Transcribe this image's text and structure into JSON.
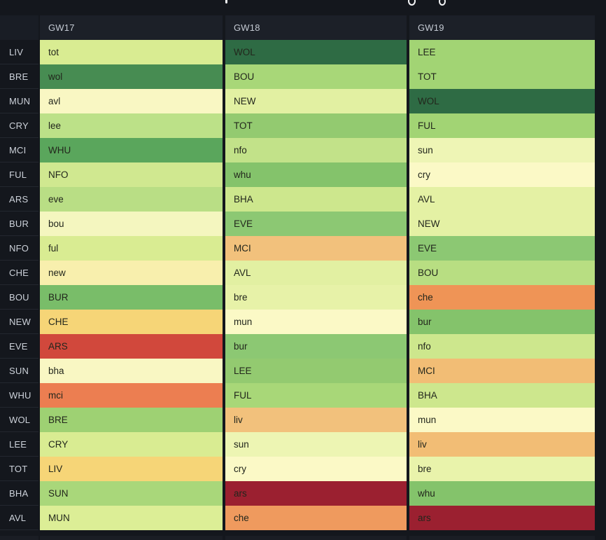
{
  "page": {
    "background": "#14171d",
    "note_cropped_title": "title text cut off at top edge; only letter descenders visible"
  },
  "theme": {
    "header_bg": "#1c2028",
    "header_text": "#c4cad3",
    "team_label_text": "#ccd1d9",
    "cell_text": "#22261c",
    "row_divider": "#23272f",
    "partial_row_bg": "#1a1d24",
    "scale_best_green": "#2e6b44",
    "scale_worst_red": "#9b2030"
  },
  "table": {
    "headers": [
      {
        "label": "GW17"
      },
      {
        "label": "GW18"
      },
      {
        "label": "GW19"
      }
    ],
    "rows": [
      {
        "team": "LIV",
        "fixtures": [
          {
            "opponent": "tot",
            "color": "#d9ec92"
          },
          {
            "opponent": "WOL",
            "color": "#2e6b44"
          },
          {
            "opponent": "LEE",
            "color": "#a2d474"
          }
        ]
      },
      {
        "team": "BRE",
        "fixtures": [
          {
            "opponent": "wol",
            "color": "#478c52"
          },
          {
            "opponent": "BOU",
            "color": "#a8d778"
          },
          {
            "opponent": "TOT",
            "color": "#a2d474"
          }
        ]
      },
      {
        "team": "MUN",
        "fixtures": [
          {
            "opponent": "avl",
            "color": "#f9f7c3"
          },
          {
            "opponent": "NEW",
            "color": "#e2f0a2"
          },
          {
            "opponent": "WOL",
            "color": "#2e6b44"
          }
        ]
      },
      {
        "team": "CRY",
        "fixtures": [
          {
            "opponent": "lee",
            "color": "#bce188"
          },
          {
            "opponent": "TOT",
            "color": "#93ca70"
          },
          {
            "opponent": "FUL",
            "color": "#a2d474"
          }
        ]
      },
      {
        "team": "MCI",
        "fixtures": [
          {
            "opponent": "WHU",
            "color": "#5aa65c"
          },
          {
            "opponent": "nfo",
            "color": "#c2e289"
          },
          {
            "opponent": "sun",
            "color": "#eef5b5"
          }
        ]
      },
      {
        "team": "FUL",
        "fixtures": [
          {
            "opponent": "NFO",
            "color": "#d0e890"
          },
          {
            "opponent": "whu",
            "color": "#84c36b"
          },
          {
            "opponent": "cry",
            "color": "#fbf9c6"
          }
        ]
      },
      {
        "team": "ARS",
        "fixtures": [
          {
            "opponent": "eve",
            "color": "#b9de85"
          },
          {
            "opponent": "BHA",
            "color": "#cde78d"
          },
          {
            "opponent": "AVL",
            "color": "#e4f1a4"
          }
        ]
      },
      {
        "team": "BUR",
        "fixtures": [
          {
            "opponent": "bou",
            "color": "#f4f6bf"
          },
          {
            "opponent": "EVE",
            "color": "#8cc873"
          },
          {
            "opponent": "NEW",
            "color": "#e4f1a4"
          }
        ]
      },
      {
        "team": "NFO",
        "fixtures": [
          {
            "opponent": "ful",
            "color": "#d9ec92"
          },
          {
            "opponent": "MCI",
            "color": "#f2c17c"
          },
          {
            "opponent": "EVE",
            "color": "#8cc873"
          }
        ]
      },
      {
        "team": "CHE",
        "fixtures": [
          {
            "opponent": "new",
            "color": "#f8efad"
          },
          {
            "opponent": "AVL",
            "color": "#e2f0a2"
          },
          {
            "opponent": "BOU",
            "color": "#b8de82"
          }
        ]
      },
      {
        "team": "BOU",
        "fixtures": [
          {
            "opponent": "BUR",
            "color": "#79bd69"
          },
          {
            "opponent": "bre",
            "color": "#e7f2a8"
          },
          {
            "opponent": "che",
            "color": "#ef9456"
          }
        ]
      },
      {
        "team": "NEW",
        "fixtures": [
          {
            "opponent": "CHE",
            "color": "#f6d577"
          },
          {
            "opponent": "mun",
            "color": "#fbf9c6"
          },
          {
            "opponent": "bur",
            "color": "#84c36b"
          }
        ]
      },
      {
        "team": "EVE",
        "fixtures": [
          {
            "opponent": "ARS",
            "color": "#d1483c"
          },
          {
            "opponent": "bur",
            "color": "#8cc873"
          },
          {
            "opponent": "nfo",
            "color": "#cde78d"
          }
        ]
      },
      {
        "team": "SUN",
        "fixtures": [
          {
            "opponent": "bha",
            "color": "#f9f7c3"
          },
          {
            "opponent": "LEE",
            "color": "#93ca70"
          },
          {
            "opponent": "MCI",
            "color": "#f2bd75"
          }
        ]
      },
      {
        "team": "WHU",
        "fixtures": [
          {
            "opponent": "mci",
            "color": "#ec7e51"
          },
          {
            "opponent": "FUL",
            "color": "#a8d778"
          },
          {
            "opponent": "BHA",
            "color": "#cde78d"
          }
        ]
      },
      {
        "team": "WOL",
        "fixtures": [
          {
            "opponent": "BRE",
            "color": "#9ed173"
          },
          {
            "opponent": "liv",
            "color": "#f2c17c"
          },
          {
            "opponent": "mun",
            "color": "#fbf9c6"
          }
        ]
      },
      {
        "team": "LEE",
        "fixtures": [
          {
            "opponent": "CRY",
            "color": "#d9ec92"
          },
          {
            "opponent": "sun",
            "color": "#edf5b3"
          },
          {
            "opponent": "liv",
            "color": "#f2bd75"
          }
        ]
      },
      {
        "team": "TOT",
        "fixtures": [
          {
            "opponent": "LIV",
            "color": "#f6d577"
          },
          {
            "opponent": "cry",
            "color": "#fbf9c6"
          },
          {
            "opponent": "bre",
            "color": "#e9f3ab"
          }
        ]
      },
      {
        "team": "BHA",
        "fixtures": [
          {
            "opponent": "SUN",
            "color": "#a9d77a"
          },
          {
            "opponent": "ars",
            "color": "#9b2030"
          },
          {
            "opponent": "whu",
            "color": "#84c36b"
          }
        ]
      },
      {
        "team": "AVL",
        "fixtures": [
          {
            "opponent": "MUN",
            "color": "#dcee96"
          },
          {
            "opponent": "che",
            "color": "#ef9a5e"
          },
          {
            "opponent": "ars",
            "color": "#9b2030"
          }
        ]
      }
    ]
  }
}
